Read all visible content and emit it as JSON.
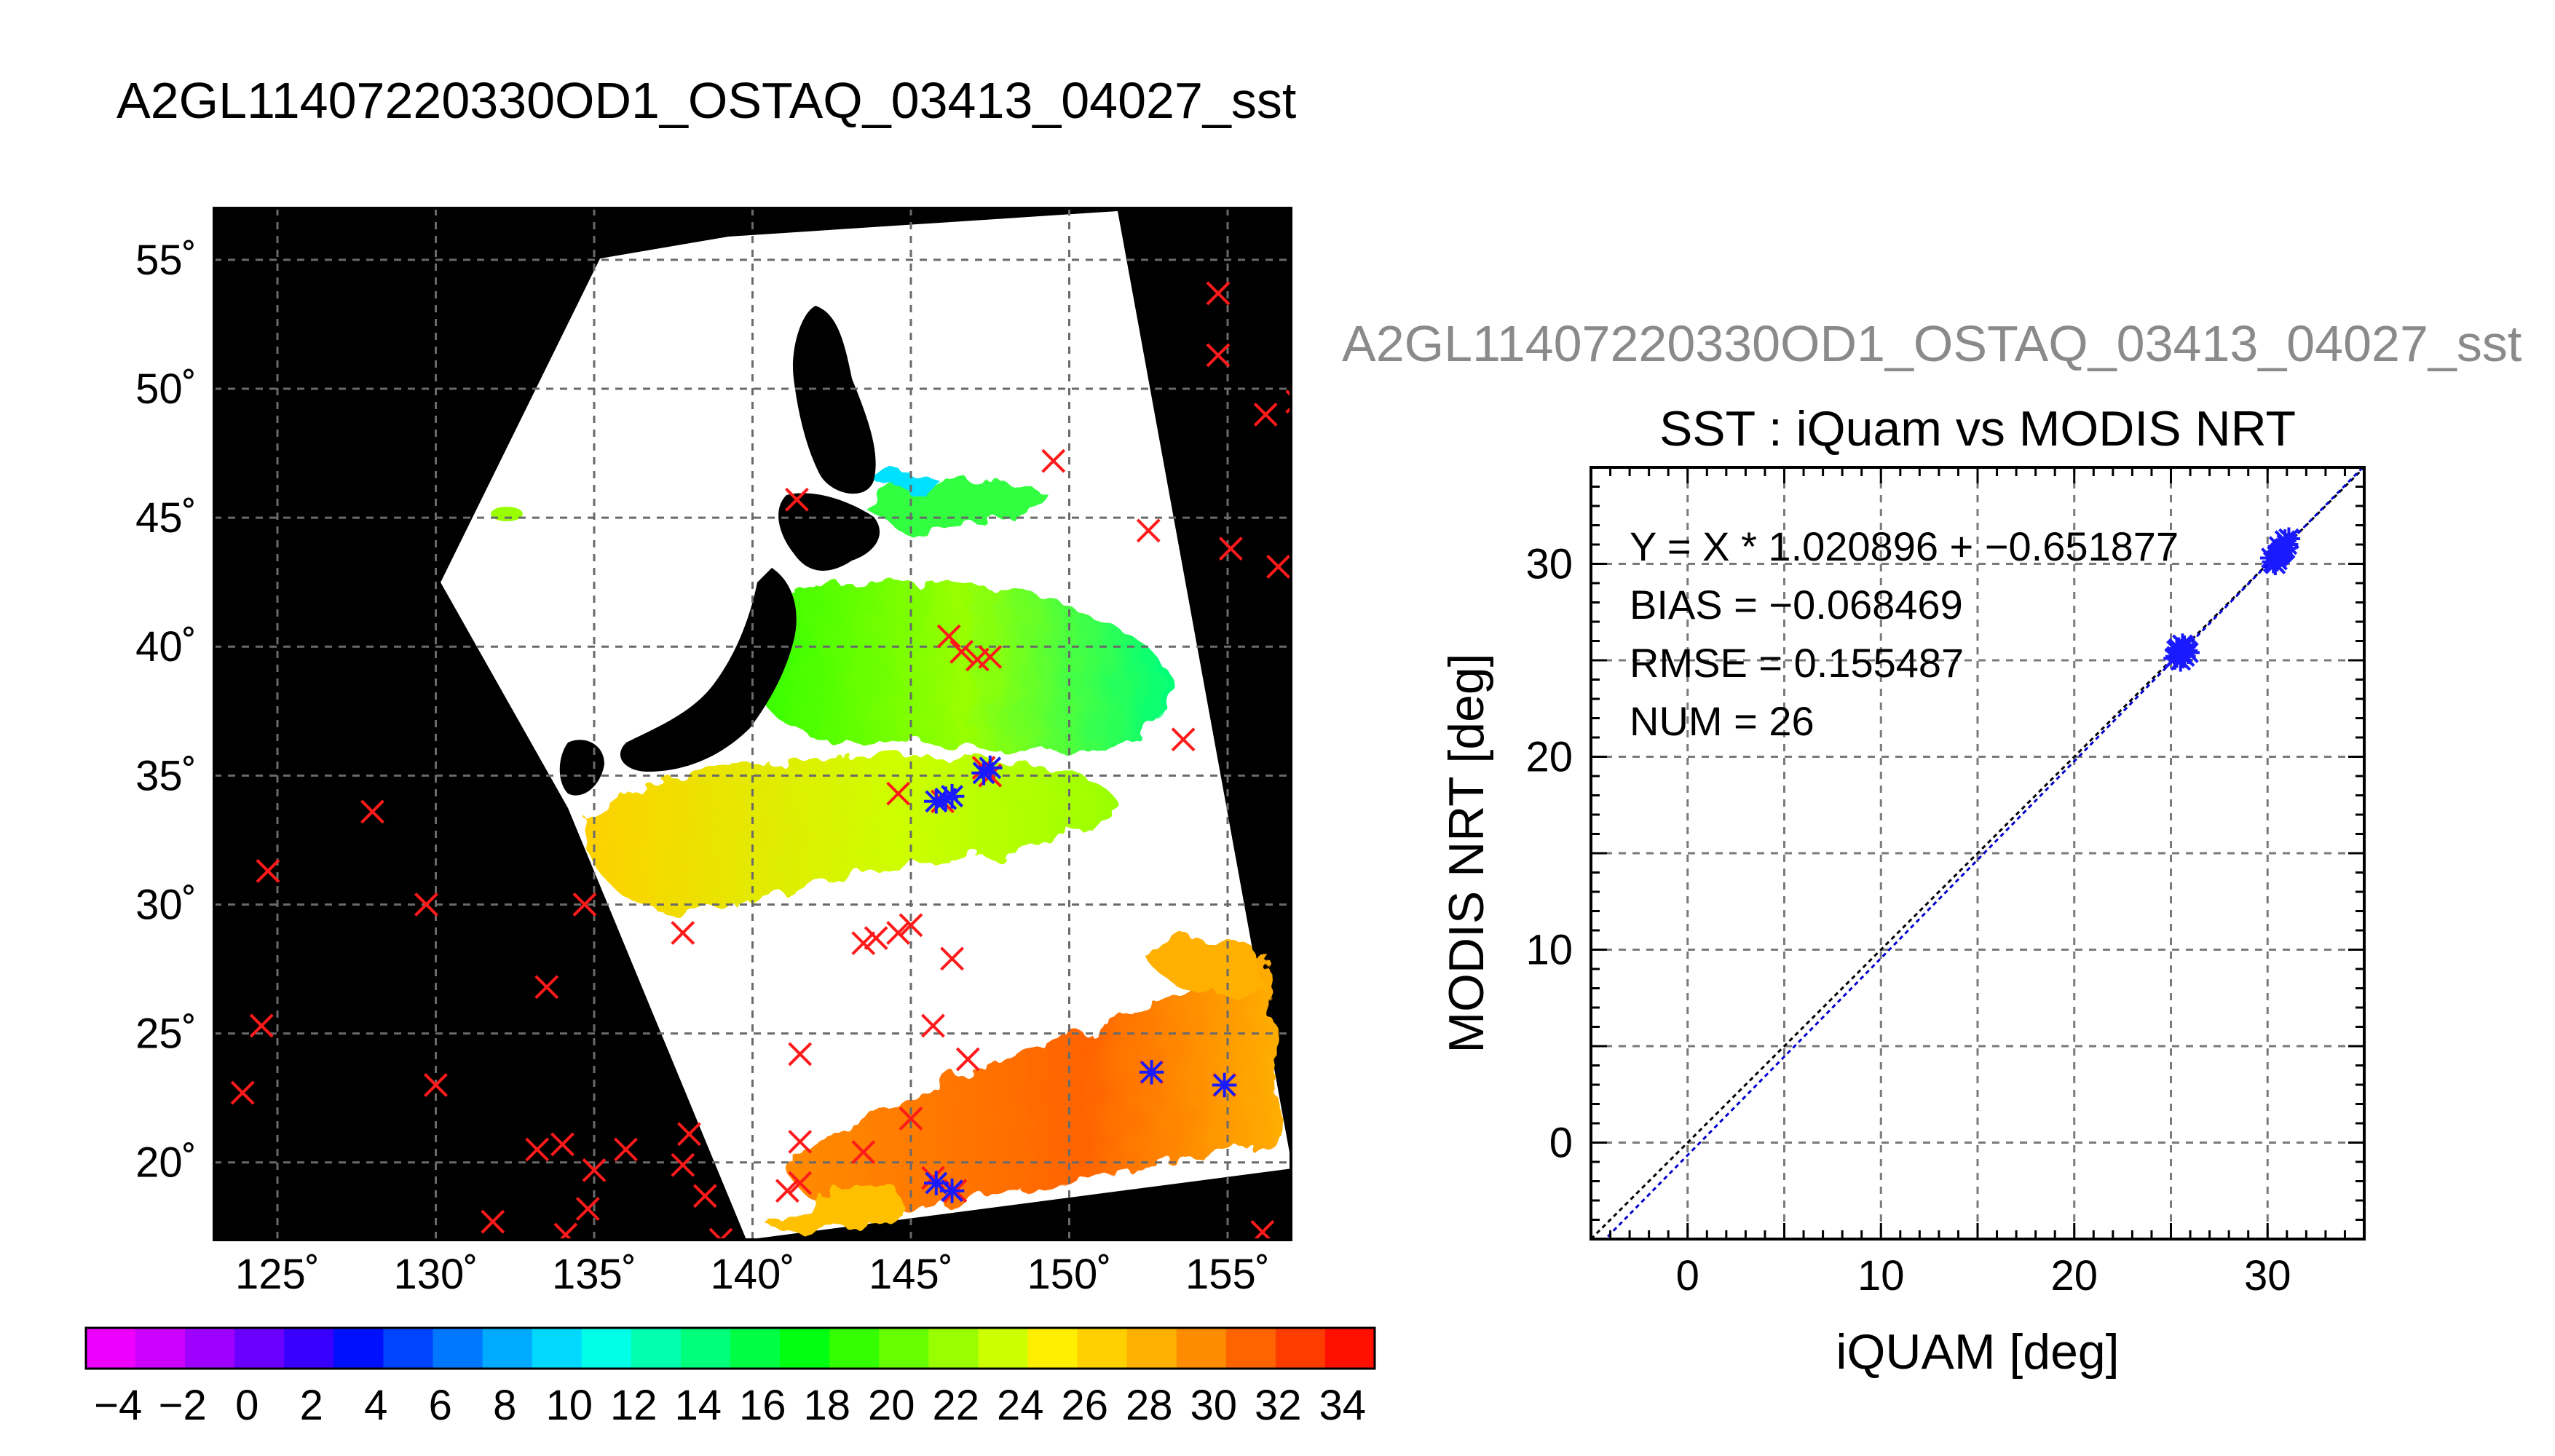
{
  "title": "A2GL11407220330OD1_OSTAQ_03413_04027_sst",
  "scatter_subtitle": "A2GL11407220330OD1_OSTAQ_03413_04027_sst",
  "colors": {
    "land": "#000000",
    "cloud": "#ffffff",
    "iquam_marker": "#ff1a1a",
    "match_marker": "#1a1aff",
    "regression_line": "#0000cc",
    "identity_line": "#000000"
  },
  "chart_data": [
    {
      "type": "heatmap",
      "title": "",
      "xlabel": "",
      "ylabel": "",
      "xlim": [
        123,
        157
      ],
      "ylim": [
        17,
        57
      ],
      "x_ticks": [
        "125˚",
        "130˚",
        "135˚",
        "140˚",
        "145˚",
        "150˚",
        "155˚"
      ],
      "y_ticks": [
        "20˚",
        "25˚",
        "30˚",
        "35˚",
        "40˚",
        "45˚",
        "50˚",
        "55˚"
      ],
      "grid": true,
      "colorbar": {
        "range": [
          -5,
          35
        ],
        "tick_labels": [
          "−4",
          "−2",
          "0",
          "2",
          "4",
          "6",
          "8",
          "10",
          "12",
          "14",
          "16",
          "18",
          "20",
          "22",
          "24",
          "26",
          "28",
          "30",
          "32",
          "34"
        ],
        "colors": [
          "#ee00ff",
          "#cc00ff",
          "#9d00ff",
          "#6a00ff",
          "#3800ff",
          "#0010ff",
          "#0044ff",
          "#0077ff",
          "#00aaff",
          "#00d8ff",
          "#00ffe6",
          "#00ffb0",
          "#00ff7a",
          "#00ff44",
          "#00ff10",
          "#33ff00",
          "#66ff00",
          "#99ff00",
          "#ccff00",
          "#ffee00",
          "#ffd000",
          "#ffb000",
          "#ff8c00",
          "#ff6400",
          "#ff3c00",
          "#ff1000"
        ]
      },
      "series": [
        {
          "name": "",
          "points": [
            [
              154.7,
              53.7
            ],
            [
              154.7,
              51.3
            ],
            [
              156.2,
              49.0
            ],
            [
              157.2,
              49.5
            ],
            [
              152.5,
              44.5
            ],
            [
              155.1,
              43.8
            ],
            [
              156.6,
              43.1
            ],
            [
              149.5,
              47.2
            ],
            [
              141.4,
              45.7
            ],
            [
              146.2,
              40.4
            ],
            [
              146.6,
              39.8
            ],
            [
              147.1,
              39.5
            ],
            [
              147.5,
              39.6
            ],
            [
              153.6,
              36.4
            ],
            [
              147.3,
              35.3
            ],
            [
              147.5,
              35.0
            ],
            [
              144.6,
              34.3
            ],
            [
              146.0,
              34.0
            ],
            [
              128.0,
              33.6
            ],
            [
              124.7,
              31.3
            ],
            [
              129.7,
              30.0
            ],
            [
              134.7,
              30.0
            ],
            [
              137.8,
              28.9
            ],
            [
              143.5,
              28.5
            ],
            [
              143.9,
              28.7
            ],
            [
              144.6,
              28.9
            ],
            [
              145.0,
              29.2
            ],
            [
              146.3,
              27.9
            ],
            [
              145.7,
              25.3
            ],
            [
              146.8,
              24.0
            ],
            [
              141.5,
              24.2
            ],
            [
              124.5,
              25.3
            ],
            [
              133.5,
              26.8
            ],
            [
              123.9,
              22.7
            ],
            [
              130.0,
              23.0
            ],
            [
              152.6,
              23.5
            ],
            [
              154.9,
              23.0
            ],
            [
              145.0,
              21.7
            ],
            [
              141.5,
              20.8
            ],
            [
              143.5,
              20.4
            ],
            [
              133.2,
              20.5
            ],
            [
              134.0,
              20.7
            ],
            [
              135.0,
              19.7
            ],
            [
              136.0,
              20.5
            ],
            [
              138.0,
              21.1
            ],
            [
              137.8,
              19.9
            ],
            [
              138.5,
              18.7
            ],
            [
              141.1,
              18.9
            ],
            [
              141.5,
              19.2
            ],
            [
              145.7,
              19.4
            ],
            [
              146.4,
              18.9
            ],
            [
              134.8,
              18.2
            ],
            [
              131.8,
              17.7
            ],
            [
              134.1,
              17.2
            ],
            [
              139.0,
              17.0
            ],
            [
              156.1,
              17.3
            ]
          ]
        },
        {
          "name": "",
          "points": [
            [
              145.8,
              34.0
            ],
            [
              146.1,
              34.1
            ],
            [
              146.3,
              34.2
            ],
            [
              147.3,
              35.1
            ],
            [
              147.5,
              35.3
            ],
            [
              152.6,
              23.5
            ],
            [
              154.9,
              23.0
            ],
            [
              145.8,
              19.2
            ],
            [
              146.3,
              18.9
            ]
          ]
        }
      ]
    },
    {
      "type": "scatter",
      "title": "SST : iQuam vs MODIS NRT",
      "xlabel": "iQUAM [deg]",
      "ylabel": "MODIS NRT [deg]",
      "xlim": [
        -5,
        35
      ],
      "ylim": [
        -5,
        35
      ],
      "x_ticks": [
        "0",
        "10",
        "20",
        "30"
      ],
      "y_ticks": [
        "0",
        "10",
        "20",
        "30"
      ],
      "grid": true,
      "stats": {
        "equation": "Y = X * 1.020896 + −0.651877",
        "bias": "BIAS = −0.068469",
        "rmse": "RMSE = 0.155487",
        "num": "NUM = 26"
      },
      "regression": {
        "slope": 1.020896,
        "intercept": -0.651877
      },
      "series": [
        {
          "name": "",
          "points": [
            [
              25.3,
              25.2
            ],
            [
              25.5,
              25.4
            ],
            [
              25.6,
              25.3
            ],
            [
              25.4,
              25.6
            ],
            [
              25.8,
              25.5
            ],
            [
              25.2,
              25.1
            ],
            [
              25.7,
              25.7
            ],
            [
              25.5,
              25.0
            ],
            [
              25.9,
              25.4
            ],
            [
              25.6,
              25.8
            ],
            [
              25.3,
              25.5
            ],
            [
              25.7,
              25.2
            ],
            [
              25.5,
              25.5
            ],
            [
              30.3,
              30.1
            ],
            [
              30.5,
              30.4
            ],
            [
              30.7,
              30.6
            ],
            [
              30.6,
              30.9
            ],
            [
              30.9,
              31.2
            ],
            [
              31.0,
              31.0
            ],
            [
              30.4,
              30.0
            ],
            [
              30.8,
              30.7
            ],
            [
              30.2,
              30.3
            ],
            [
              30.6,
              30.5
            ],
            [
              30.9,
              30.8
            ],
            [
              31.1,
              31.3
            ],
            [
              30.5,
              30.2
            ]
          ]
        }
      ]
    }
  ]
}
